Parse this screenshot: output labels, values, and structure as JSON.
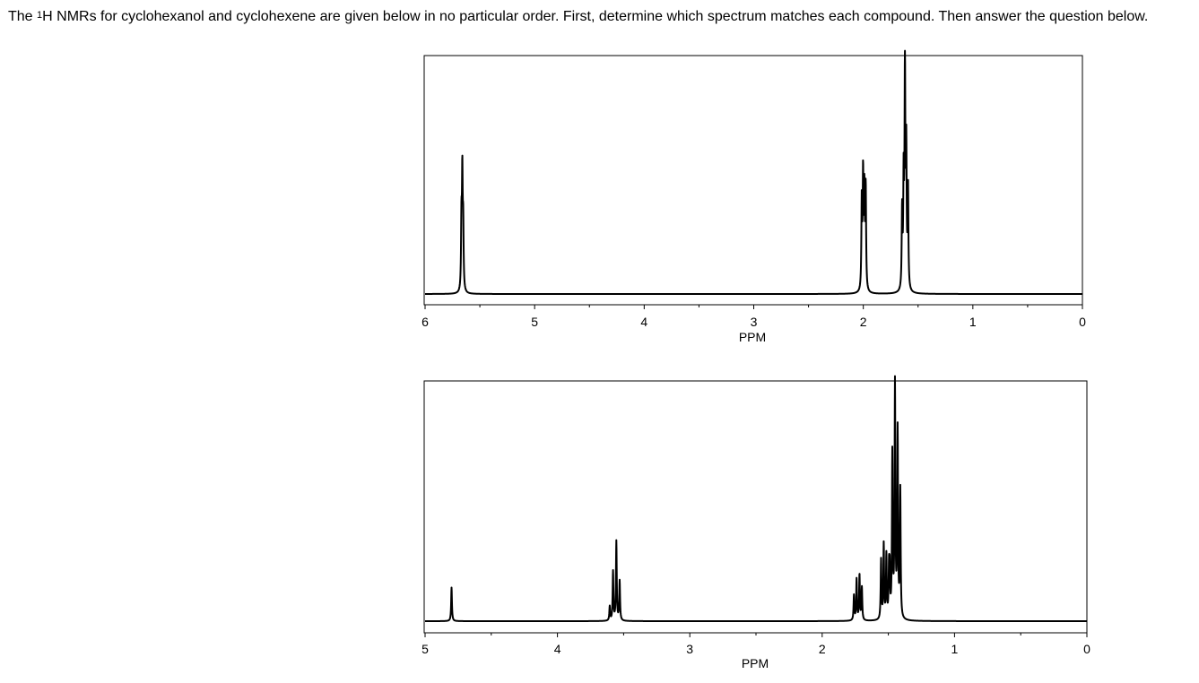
{
  "instruction": {
    "prefix": "The ",
    "superscript": "1",
    "text": "H NMRs for cyclohexanol and cyclohexene are given below in no particular order. First, determine which spectrum matches each compound. Then answer the question below."
  },
  "chart_data": [
    {
      "type": "line",
      "title": "",
      "xlabel": "PPM",
      "ylabel": "",
      "xlim": [
        6,
        0
      ],
      "x_reversed": true,
      "ticks": [
        6,
        5,
        4,
        3,
        2,
        1,
        0
      ],
      "tick_labels": [
        "6",
        "5",
        "4",
        "3",
        "2",
        "1",
        "0"
      ],
      "grid": false,
      "ylim": [
        0,
        1
      ],
      "peaks": [
        {
          "ppm": 5.66,
          "height": 0.47
        },
        {
          "ppm": 1.99,
          "height": 0.47
        },
        {
          "ppm": 1.62,
          "height": 0.94
        }
      ],
      "color": "#000000"
    },
    {
      "type": "line",
      "title": "",
      "xlabel": "PPM",
      "ylabel": "",
      "xlim": [
        5,
        0
      ],
      "x_reversed": true,
      "ticks": [
        5,
        4,
        3,
        2,
        1,
        0
      ],
      "tick_labels": [
        "5",
        "4",
        "3",
        "2",
        "1",
        "0"
      ],
      "grid": false,
      "ylim": [
        0,
        1
      ],
      "peaks": [
        {
          "ppm": 4.8,
          "height": 0.14
        },
        {
          "ppm": 3.57,
          "height": 0.33
        },
        {
          "ppm": 1.73,
          "height": 0.19
        },
        {
          "ppm": 1.53,
          "height": 0.31
        },
        {
          "ppm": 1.45,
          "height": 0.97
        }
      ],
      "color": "#000000"
    }
  ]
}
